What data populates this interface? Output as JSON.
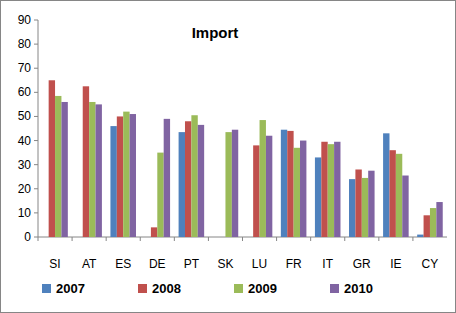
{
  "chart_data": {
    "type": "bar",
    "title": "Import",
    "categories": [
      "SI",
      "AT",
      "ES",
      "DE",
      "PT",
      "SK",
      "LU",
      "FR",
      "IT",
      "GR",
      "IE",
      "CY"
    ],
    "series": [
      {
        "name": "2007",
        "color": "#4f81bd",
        "values": [
          null,
          null,
          46,
          null,
          43.5,
          null,
          null,
          44.5,
          33,
          24,
          43,
          1
        ]
      },
      {
        "name": "2008",
        "color": "#c0504d",
        "values": [
          65,
          62.5,
          50,
          4,
          48,
          null,
          38,
          44,
          39.5,
          28,
          36,
          9
        ]
      },
      {
        "name": "2009",
        "color": "#9bbb59",
        "values": [
          58.5,
          56,
          52,
          35,
          50.5,
          43.5,
          48.5,
          37,
          38.5,
          24.5,
          34.5,
          12
        ]
      },
      {
        "name": "2010",
        "color": "#8064a2",
        "values": [
          56,
          55,
          51,
          49,
          46.5,
          44.5,
          42,
          40,
          39.5,
          27.5,
          25.5,
          14.5
        ]
      }
    ],
    "ylim": [
      0,
      90
    ],
    "yticks": [
      0,
      10,
      20,
      30,
      40,
      50,
      60,
      70,
      80,
      90
    ],
    "grid": false,
    "legend": "bottom"
  }
}
